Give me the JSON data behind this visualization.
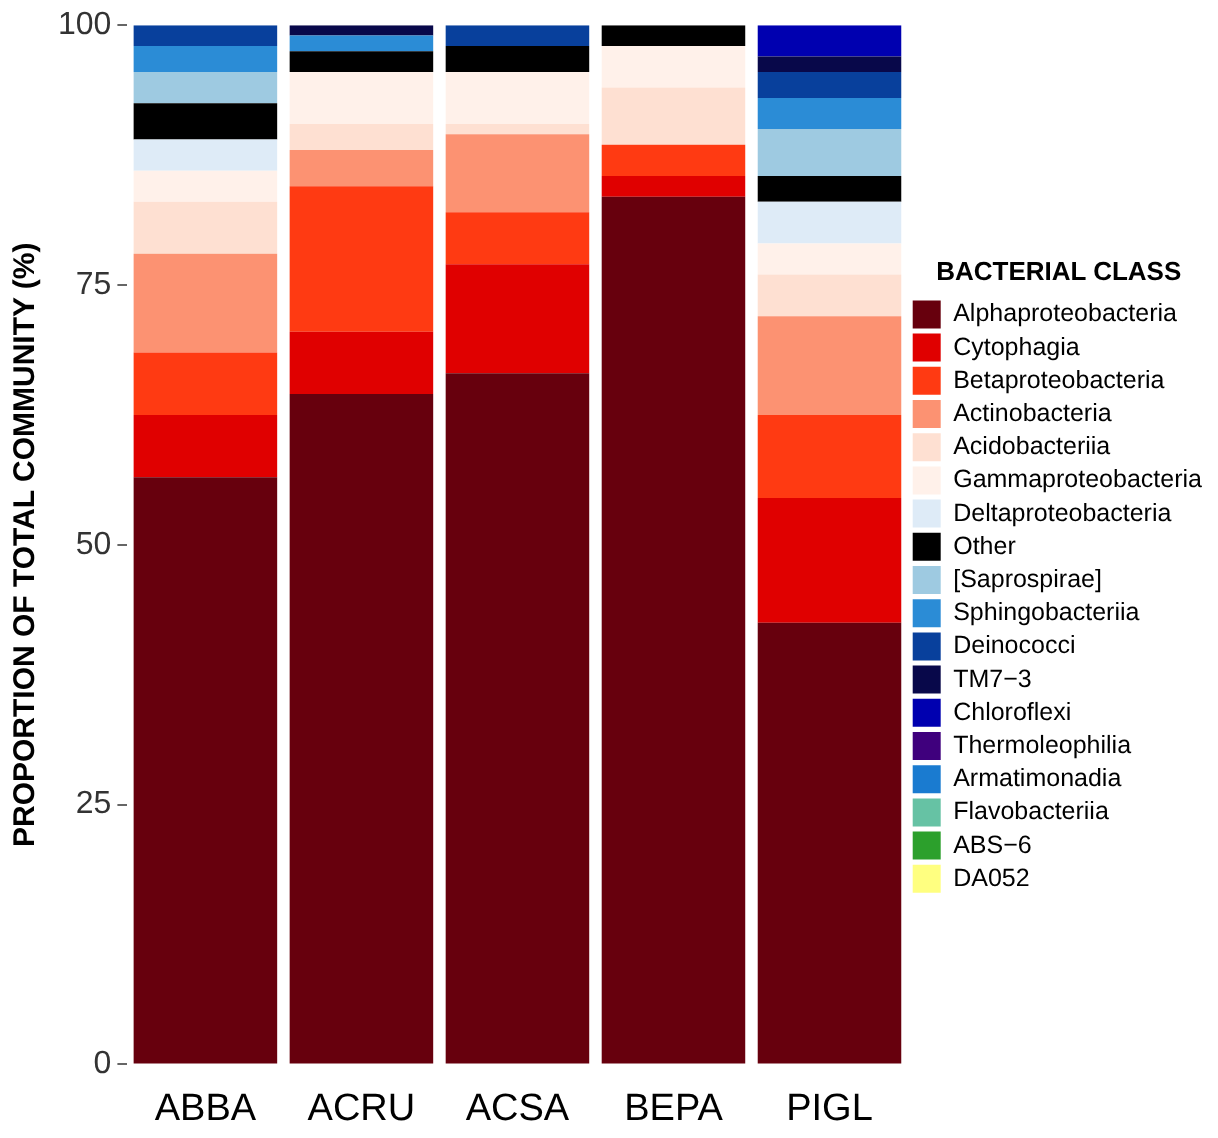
{
  "chart_data": {
    "type": "bar",
    "stacked": true,
    "ylabel": "PROPORTION OF TOTAL COMMUNITY (%)",
    "legend_title": "BACTERIAL CLASS",
    "legend": "right",
    "grid": false,
    "categories": [
      "ABBA",
      "ACRU",
      "ACSA",
      "BEPA",
      "PIGL"
    ],
    "ylim": [
      0,
      100
    ],
    "yticks": [
      0,
      25,
      50,
      75,
      100
    ],
    "series": [
      {
        "name": "Alphaproteobacteria",
        "color": "#67000d",
        "values": [
          56.5,
          64.5,
          66.5,
          83.5,
          42.5
        ]
      },
      {
        "name": "Cytophagia",
        "color": "#e00000",
        "values": [
          6,
          6,
          10.5,
          2,
          12
        ]
      },
      {
        "name": "Betaproteobacteria",
        "color": "#ff3a12",
        "values": [
          6,
          14,
          5,
          3,
          8
        ]
      },
      {
        "name": "Actinobacteria",
        "color": "#fc9272",
        "values": [
          9.5,
          3.5,
          7.5,
          0,
          9.5
        ]
      },
      {
        "name": "Acidobacteriia",
        "color": "#fee0d2",
        "values": [
          5,
          2.5,
          1,
          5.5,
          4
        ]
      },
      {
        "name": "Gammaproteobacteria",
        "color": "#fff1ea",
        "values": [
          3,
          5,
          5,
          4,
          3
        ]
      },
      {
        "name": "Deltaproteobacteria",
        "color": "#deebf7",
        "values": [
          3,
          0,
          0,
          0,
          4
        ]
      },
      {
        "name": "Other",
        "color": "#000000",
        "values": [
          3.5,
          2,
          2.5,
          2,
          2.5
        ]
      },
      {
        "name": "[Saprospirae]",
        "color": "#9ecae1",
        "values": [
          3,
          0,
          0,
          0,
          4.5
        ]
      },
      {
        "name": "Sphingobacteriia",
        "color": "#2b8cd6",
        "values": [
          2.5,
          1.5,
          0,
          0,
          3
        ]
      },
      {
        "name": "Deinococci",
        "color": "#08409c",
        "values": [
          2,
          0,
          2,
          0,
          2.5
        ]
      },
      {
        "name": "TM7−3",
        "color": "#08084a",
        "values": [
          0,
          1,
          0,
          0,
          1.5
        ]
      },
      {
        "name": "Chloroflexi",
        "color": "#0000b0",
        "values": [
          0,
          0,
          0,
          0,
          3
        ]
      },
      {
        "name": "Thermoleophilia",
        "color": "#3f007d",
        "values": [
          0,
          0,
          0,
          0,
          0
        ]
      },
      {
        "name": "Armatimonadia",
        "color": "#1a7bd0",
        "values": [
          0,
          0,
          0,
          0,
          0
        ]
      },
      {
        "name": "Flavobacteriia",
        "color": "#66c2a4",
        "values": [
          0,
          0,
          0,
          0,
          0
        ]
      },
      {
        "name": "ABS−6",
        "color": "#2ca02c",
        "values": [
          0,
          0,
          0,
          0,
          0
        ]
      },
      {
        "name": "DA052",
        "color": "#ffff80",
        "values": [
          0,
          0,
          0,
          0,
          0
        ]
      }
    ]
  }
}
